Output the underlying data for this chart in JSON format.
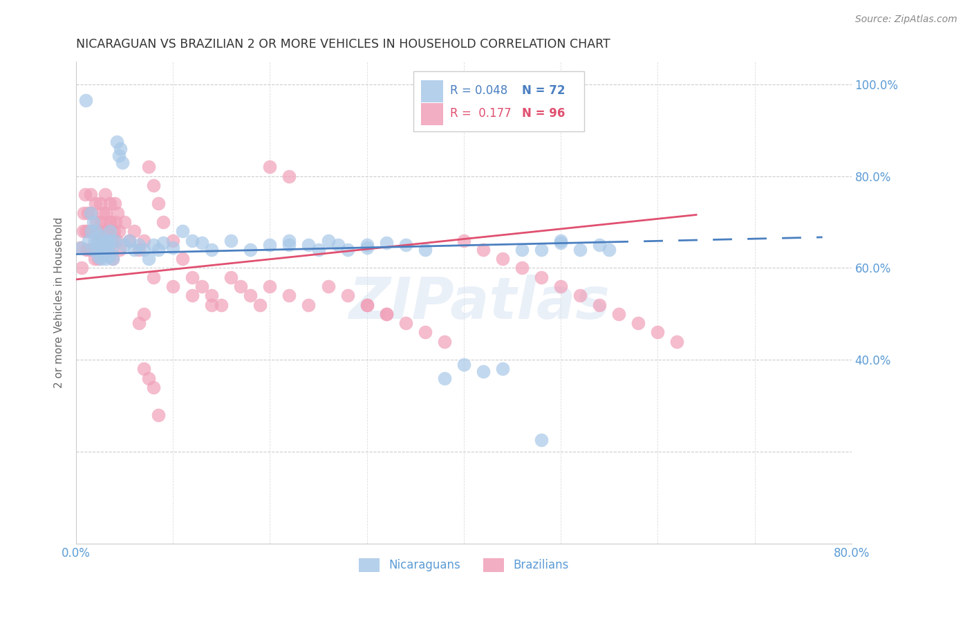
{
  "title": "NICARAGUAN VS BRAZILIAN 2 OR MORE VEHICLES IN HOUSEHOLD CORRELATION CHART",
  "source": "Source: ZipAtlas.com",
  "ylabel": "2 or more Vehicles in Household",
  "blue_color": "#a8c8e8",
  "pink_color": "#f0a0b8",
  "blue_line_color": "#4a7fc0",
  "pink_line_color": "#e05070",
  "axis_color": "#5b9bd5",
  "title_color": "#333333",
  "watermark": "ZIPatlas",
  "blue_intercept": 0.63,
  "blue_slope": 0.048,
  "pink_intercept": 0.575,
  "pink_slope": 0.22,
  "blue_x": [
    0.005,
    0.01,
    0.013,
    0.015,
    0.016,
    0.017,
    0.018,
    0.019,
    0.02,
    0.021,
    0.022,
    0.023,
    0.024,
    0.025,
    0.026,
    0.027,
    0.028,
    0.03,
    0.031,
    0.032,
    0.033,
    0.034,
    0.035,
    0.036,
    0.037,
    0.038,
    0.04,
    0.042,
    0.044,
    0.046,
    0.048,
    0.05,
    0.055,
    0.06,
    0.065,
    0.07,
    0.075,
    0.08,
    0.085,
    0.09,
    0.1,
    0.11,
    0.12,
    0.13,
    0.14,
    0.16,
    0.18,
    0.2,
    0.22,
    0.24,
    0.26,
    0.28,
    0.3,
    0.32,
    0.34,
    0.36,
    0.38,
    0.4,
    0.42,
    0.44,
    0.46,
    0.48,
    0.5,
    0.52,
    0.54,
    0.55,
    0.5,
    0.48,
    0.22,
    0.25,
    0.27,
    0.3
  ],
  "blue_y": [
    0.645,
    0.965,
    0.66,
    0.72,
    0.68,
    0.64,
    0.7,
    0.66,
    0.64,
    0.68,
    0.655,
    0.625,
    0.67,
    0.635,
    0.62,
    0.66,
    0.64,
    0.65,
    0.62,
    0.66,
    0.64,
    0.625,
    0.68,
    0.66,
    0.64,
    0.62,
    0.66,
    0.875,
    0.845,
    0.86,
    0.83,
    0.65,
    0.66,
    0.64,
    0.65,
    0.64,
    0.62,
    0.65,
    0.64,
    0.655,
    0.645,
    0.68,
    0.66,
    0.655,
    0.64,
    0.66,
    0.64,
    0.65,
    0.66,
    0.65,
    0.66,
    0.64,
    0.645,
    0.655,
    0.65,
    0.64,
    0.36,
    0.39,
    0.375,
    0.38,
    0.64,
    0.64,
    0.655,
    0.64,
    0.65,
    0.64,
    0.66,
    0.225,
    0.65,
    0.64,
    0.65,
    0.65
  ],
  "pink_x": [
    0.004,
    0.006,
    0.007,
    0.008,
    0.009,
    0.01,
    0.011,
    0.012,
    0.013,
    0.014,
    0.015,
    0.016,
    0.017,
    0.018,
    0.019,
    0.02,
    0.021,
    0.022,
    0.023,
    0.024,
    0.025,
    0.026,
    0.027,
    0.028,
    0.029,
    0.03,
    0.031,
    0.032,
    0.033,
    0.034,
    0.035,
    0.036,
    0.037,
    0.038,
    0.039,
    0.04,
    0.041,
    0.042,
    0.043,
    0.044,
    0.045,
    0.05,
    0.055,
    0.06,
    0.065,
    0.07,
    0.075,
    0.08,
    0.085,
    0.09,
    0.1,
    0.11,
    0.12,
    0.13,
    0.14,
    0.15,
    0.16,
    0.17,
    0.18,
    0.19,
    0.2,
    0.22,
    0.24,
    0.26,
    0.28,
    0.3,
    0.32,
    0.34,
    0.36,
    0.38,
    0.2,
    0.22,
    0.07,
    0.065,
    0.3,
    0.32,
    0.08,
    0.1,
    0.12,
    0.14,
    0.4,
    0.42,
    0.44,
    0.46,
    0.48,
    0.5,
    0.52,
    0.54,
    0.56,
    0.58,
    0.6,
    0.62,
    0.07,
    0.075,
    0.08,
    0.085
  ],
  "pink_y": [
    0.645,
    0.6,
    0.68,
    0.72,
    0.76,
    0.68,
    0.64,
    0.72,
    0.68,
    0.64,
    0.76,
    0.72,
    0.68,
    0.64,
    0.62,
    0.74,
    0.7,
    0.66,
    0.62,
    0.68,
    0.74,
    0.7,
    0.66,
    0.72,
    0.68,
    0.76,
    0.72,
    0.68,
    0.64,
    0.7,
    0.74,
    0.7,
    0.66,
    0.62,
    0.68,
    0.74,
    0.7,
    0.66,
    0.72,
    0.68,
    0.64,
    0.7,
    0.66,
    0.68,
    0.64,
    0.66,
    0.82,
    0.78,
    0.74,
    0.7,
    0.66,
    0.62,
    0.58,
    0.56,
    0.54,
    0.52,
    0.58,
    0.56,
    0.54,
    0.52,
    0.56,
    0.54,
    0.52,
    0.56,
    0.54,
    0.52,
    0.5,
    0.48,
    0.46,
    0.44,
    0.82,
    0.8,
    0.5,
    0.48,
    0.52,
    0.5,
    0.58,
    0.56,
    0.54,
    0.52,
    0.66,
    0.64,
    0.62,
    0.6,
    0.58,
    0.56,
    0.54,
    0.52,
    0.5,
    0.48,
    0.46,
    0.44,
    0.38,
    0.36,
    0.34,
    0.28
  ]
}
